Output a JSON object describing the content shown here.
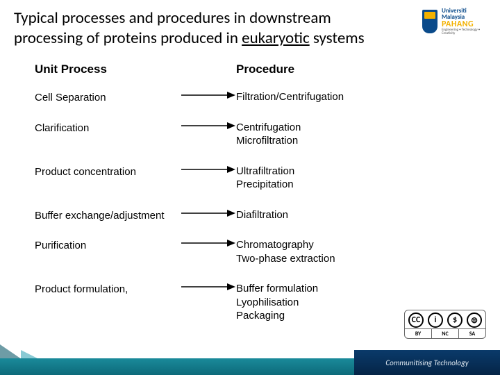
{
  "title": {
    "prefix": "Typical processes and procedures in downstream processing of proteins produced in ",
    "underlined": "eukaryotic",
    "suffix": " systems",
    "fontsize": 23,
    "color": "#000000"
  },
  "logo": {
    "line1": "Universiti",
    "line2": "Malaysia",
    "line3": "PAHANG",
    "sub": "Engineering • Technology • Creativity",
    "shield_bg": "#0a4a8a",
    "shield_accent": "#f2b100"
  },
  "diagram": {
    "font_family": "Arial",
    "text_color": "#000000",
    "header_fontsize": 17,
    "row_fontsize": 15,
    "row_gap": 24,
    "arrow_color": "#000000",
    "arrow_width": 78,
    "headers": {
      "process": "Unit Process",
      "procedure": "Procedure"
    },
    "rows": [
      {
        "process": "Cell Separation",
        "procedures": [
          "Filtration/Centrifugation"
        ]
      },
      {
        "process": "Clarification",
        "procedures": [
          "Centrifugation",
          "Microfiltration"
        ]
      },
      {
        "process": "Product concentration",
        "procedures": [
          "Ultrafiltration",
          "Precipitation"
        ]
      },
      {
        "process": "Buffer exchange/adjustment",
        "procedures": [
          "Diafiltration"
        ]
      },
      {
        "process": "Purification",
        "procedures": [
          "Chromatography",
          "Two-phase extraction"
        ]
      },
      {
        "process": "Product formulation,",
        "procedures": [
          "Buffer formulation",
          "Lyophilisation",
          "Packaging"
        ]
      }
    ]
  },
  "cc": {
    "icons": [
      "CC",
      "i",
      "$",
      "⊜"
    ],
    "labels": [
      "BY",
      "NC",
      "SA"
    ],
    "border_color": "#666666"
  },
  "footer": {
    "tagline": "Communitising Technology",
    "teal_top": "#1a8a9a",
    "teal_bottom": "#0d6a7a",
    "navy_top": "#0a3a6a",
    "navy_bottom": "#052547",
    "text_color": "#dfe8f0"
  }
}
